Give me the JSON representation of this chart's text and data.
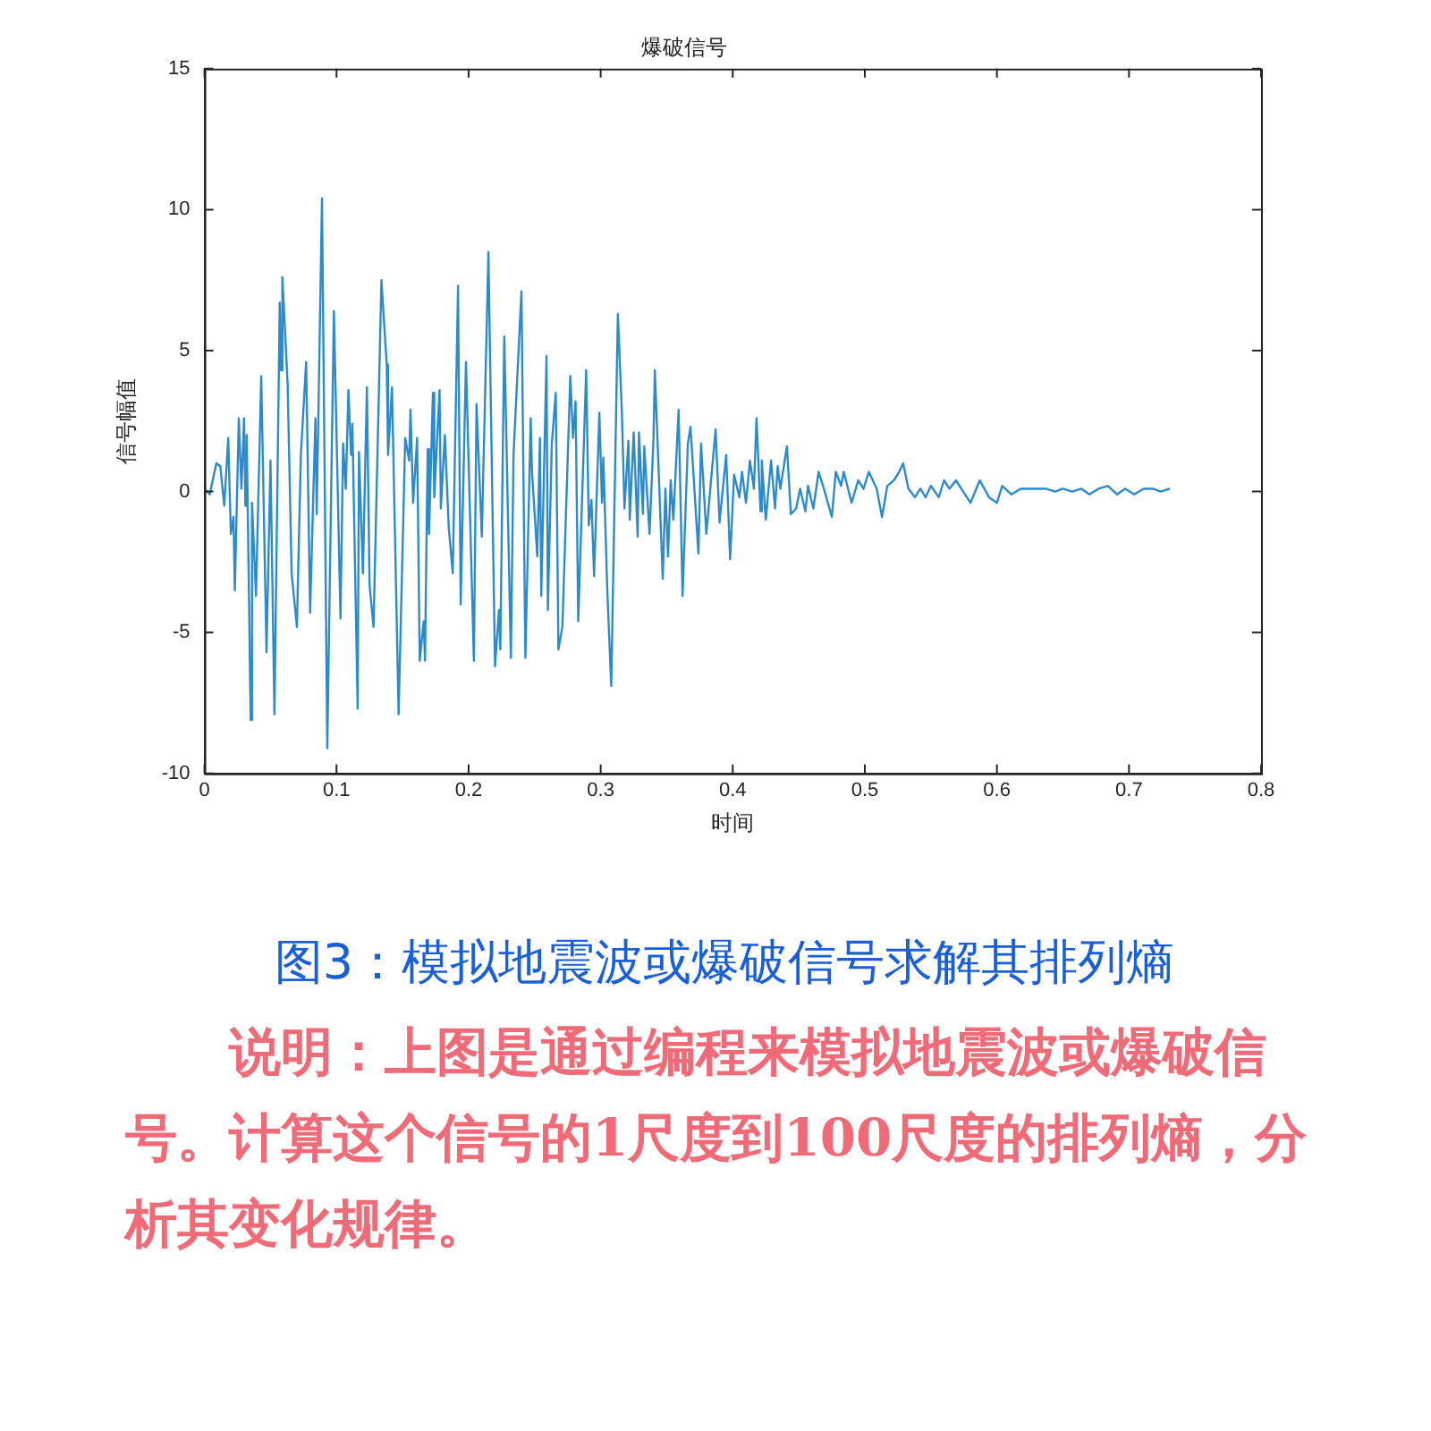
{
  "chart_data": {
    "type": "line",
    "title": "爆破信号",
    "xlabel": "时间",
    "ylabel": "信号幅值",
    "xlim": [
      0,
      0.8
    ],
    "xticks": [
      0,
      0.1,
      0.2,
      0.3,
      0.4,
      0.5,
      0.6,
      0.7,
      0.8
    ],
    "ylim": [
      -10,
      15
    ],
    "yticks": [
      -10,
      -5,
      0,
      5,
      10,
      15
    ],
    "grid": false,
    "legend": false,
    "marker": "none",
    "line_style": "solid",
    "series": [
      {
        "color": "#2e8bc9",
        "x": [
          0,
          0.004,
          0.009,
          0.012,
          0.015,
          0.018,
          0.02,
          0.022,
          0.023,
          0.026,
          0.028,
          0.03,
          0.031,
          0.032,
          0.035,
          0.036,
          0.039,
          0.043,
          0.047,
          0.05,
          0.053,
          0.057,
          0.058,
          0.059,
          0.063,
          0.066,
          0.07,
          0.073,
          0.077,
          0.08,
          0.084,
          0.085,
          0.089,
          0.093,
          0.098,
          0.103,
          0.105,
          0.107,
          0.109,
          0.111,
          0.112,
          0.116,
          0.117,
          0.12,
          0.123,
          0.125,
          0.128,
          0.134,
          0.138,
          0.139,
          0.142,
          0.147,
          0.152,
          0.155,
          0.156,
          0.158,
          0.161,
          0.163,
          0.166,
          0.167,
          0.169,
          0.17,
          0.173,
          0.174,
          0.178,
          0.179,
          0.182,
          0.185,
          0.188,
          0.192,
          0.194,
          0.198,
          0.204,
          0.206,
          0.21,
          0.215,
          0.22,
          0.223,
          0.224,
          0.227,
          0.229,
          0.232,
          0.234,
          0.24,
          0.243,
          0.247,
          0.248,
          0.252,
          0.254,
          0.255,
          0.259,
          0.26,
          0.263,
          0.266,
          0.268,
          0.271,
          0.277,
          0.279,
          0.281,
          0.283,
          0.289,
          0.291,
          0.293,
          0.295,
          0.299,
          0.301,
          0.302,
          0.305,
          0.308,
          0.313,
          0.316,
          0.318,
          0.321,
          0.322,
          0.325,
          0.328,
          0.329,
          0.332,
          0.333,
          0.337,
          0.34,
          0.341,
          0.347,
          0.349,
          0.351,
          0.353,
          0.355,
          0.359,
          0.362,
          0.366,
          0.368,
          0.374,
          0.376,
          0.38,
          0.383,
          0.387,
          0.39,
          0.395,
          0.398,
          0.401,
          0.405,
          0.407,
          0.41,
          0.413,
          0.416,
          0.418,
          0.421,
          0.422,
          0.425,
          0.429,
          0.432,
          0.434,
          0.436,
          0.441,
          0.444,
          0.448,
          0.451,
          0.455,
          0.457,
          0.461,
          0.465,
          0.469,
          0.475,
          0.478,
          0.482,
          0.484,
          0.49,
          0.495,
          0.499,
          0.503,
          0.509,
          0.513,
          0.517,
          0.522,
          0.526,
          0.529,
          0.533,
          0.538,
          0.542,
          0.546,
          0.55,
          0.556,
          0.56,
          0.564,
          0.569,
          0.573,
          0.58,
          0.587,
          0.594,
          0.6,
          0.604,
          0.611,
          0.618,
          0.625,
          0.63,
          0.637,
          0.644,
          0.65,
          0.657,
          0.664,
          0.67,
          0.677,
          0.684,
          0.691,
          0.697,
          0.704,
          0.711,
          0.718,
          0.724,
          0.731
        ],
        "values": [
          0.1,
          -0.1,
          1.0,
          0.9,
          -0.5,
          1.9,
          -1.5,
          -0.9,
          -3.5,
          2.6,
          0.1,
          2.6,
          -0.5,
          2.0,
          -8.1,
          -0.4,
          -3.7,
          4.1,
          -5.7,
          1.1,
          -7.9,
          6.7,
          4.3,
          7.6,
          3.8,
          -2.9,
          -4.8,
          1.3,
          4.6,
          -4.3,
          2.6,
          -0.8,
          10.4,
          -9.1,
          6.4,
          -4.5,
          1.7,
          0.1,
          3.6,
          1.3,
          2.4,
          -7.7,
          1.4,
          -2.9,
          3.7,
          -3.3,
          -4.8,
          7.5,
          4.5,
          1.3,
          3.7,
          -7.9,
          1.9,
          1.1,
          2.9,
          -0.4,
          1.9,
          -6.0,
          -4.6,
          -6.0,
          1.5,
          -1.5,
          3.5,
          -0.2,
          3.6,
          -0.6,
          2.0,
          -1.3,
          -2.9,
          7.3,
          -4.0,
          4.6,
          -6.0,
          3.1,
          -1.6,
          8.5,
          -6.2,
          -4.2,
          -5.6,
          5.5,
          1.0,
          -5.9,
          1.3,
          7.1,
          -5.9,
          2.6,
          0.7,
          -2.3,
          1.9,
          -3.7,
          4.8,
          -4.2,
          1.7,
          3.5,
          -5.6,
          -4.8,
          4.1,
          1.9,
          3.2,
          -4.6,
          4.3,
          -1.2,
          -0.3,
          -3.0,
          2.8,
          -0.4,
          1.2,
          -3.5,
          -6.9,
          6.3,
          2.9,
          -0.6,
          1.8,
          -1.0,
          2.1,
          -1.6,
          2.1,
          -0.8,
          1.6,
          -1.5,
          1.9,
          4.3,
          -3.1,
          0.1,
          -2.3,
          0.4,
          -1.0,
          2.9,
          -3.7,
          1.7,
          2.3,
          -2.2,
          1.7,
          -1.5,
          0.1,
          2.2,
          -1.1,
          1.3,
          -2.4,
          0.6,
          -0.2,
          0.7,
          -0.4,
          1.1,
          0.1,
          2.6,
          -0.7,
          1.1,
          -1.0,
          1.1,
          -0.6,
          0.9,
          0.1,
          1.6,
          -0.8,
          -0.6,
          0.1,
          -0.7,
          0.2,
          -0.6,
          0.7,
          0.1,
          -0.9,
          0.7,
          0.2,
          0.7,
          -0.4,
          0.4,
          0.1,
          0.7,
          0.1,
          -0.9,
          0.2,
          0.4,
          0.7,
          1.0,
          0.1,
          -0.2,
          0.1,
          -0.2,
          0.2,
          -0.2,
          0.4,
          0.1,
          0.4,
          0.1,
          -0.4,
          0.4,
          -0.2,
          -0.4,
          0.2,
          -0.1,
          0.1,
          0.1,
          0.1,
          0.1,
          0.0,
          0.1,
          0.0,
          0.1,
          -0.1,
          0.1,
          0.2,
          -0.1,
          0.1,
          -0.1,
          0.1,
          0.1,
          0.0,
          0.1
        ]
      }
    ],
    "annotations": [
      "图3：模拟地震波或爆破信号求解其排列熵",
      "说明：上图是通过编程来模拟地震波或爆破信号。计算这个信号的1尺度到100尺度的排列熵，分析其变化规律。"
    ]
  }
}
